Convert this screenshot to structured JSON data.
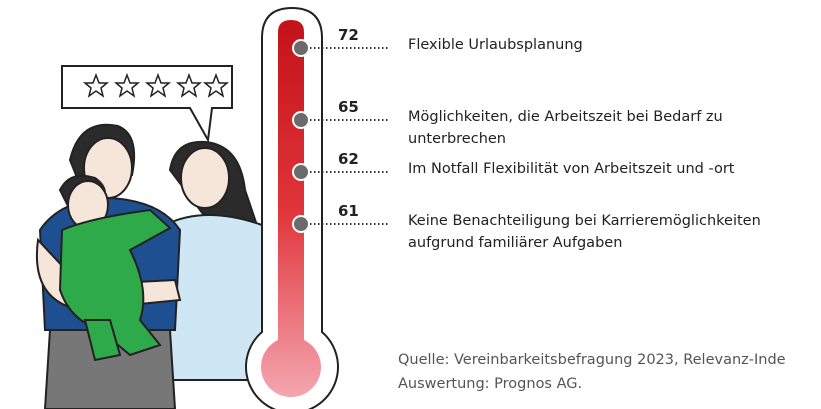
{
  "items": [
    {
      "value": "72",
      "label": "Flexible Urlaubsplanung"
    },
    {
      "value": "65",
      "label": "Möglichkeiten, die Arbeitszeit bei Bedarf zu unterbrechen"
    },
    {
      "value": "62",
      "label": "Im Notfall Flexibilität von Arbeitszeit und -ort"
    },
    {
      "value": "61",
      "label": "Keine Benachteiligung bei Karrieremöglichkeiten aufgrund familiärer Aufgaben"
    }
  ],
  "footer": {
    "source": "Quelle: Vereinbarkeitsbefragung 2023, Relevanz-Inde",
    "analysis": "Auswertung: Prognos AG."
  }
}
